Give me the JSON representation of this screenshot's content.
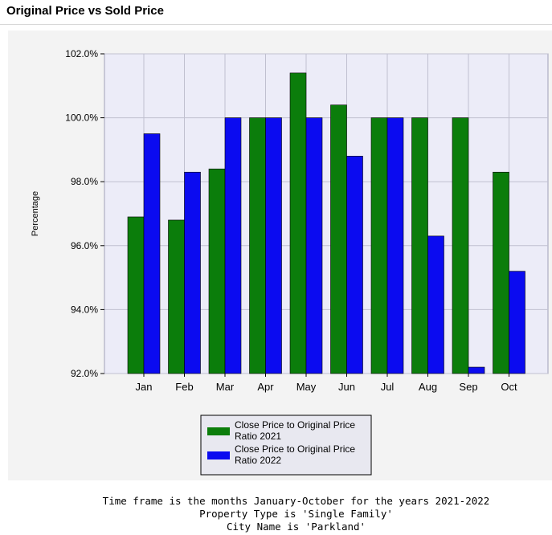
{
  "page": {
    "title": "Original Price vs Sold Price"
  },
  "colors": {
    "series_2021": "#0b7d0b",
    "series_2022": "#0b0bf0",
    "plot_bg": "#ececf8"
  },
  "chart_data": {
    "type": "bar",
    "title": "",
    "xlabel": "",
    "ylabel": "Percentage",
    "ylim": [
      92.0,
      102.0
    ],
    "yticks": [
      "102.0%",
      "100.0%",
      "98.0%",
      "96.0%",
      "94.0%",
      "92.0%"
    ],
    "categories": [
      "Jan",
      "Feb",
      "Mar",
      "Apr",
      "May",
      "Jun",
      "Jul",
      "Aug",
      "Sep",
      "Oct"
    ],
    "series": [
      {
        "name": "Close Price to Original Price Ratio 2021",
        "values": [
          96.9,
          96.8,
          98.4,
          100.0,
          101.4,
          100.4,
          100.0,
          100.0,
          100.0,
          98.3
        ]
      },
      {
        "name": "Close Price to Original Price Ratio 2022",
        "values": [
          99.5,
          98.3,
          100.0,
          100.0,
          100.0,
          98.8,
          100.0,
          96.3,
          92.2,
          95.2
        ]
      }
    ],
    "legend": {
      "placement": "bottom-center",
      "entries": [
        {
          "line1": "Close Price to Original Price",
          "line2": "Ratio 2021"
        },
        {
          "line1": "Close Price to Original Price",
          "line2": "Ratio 2022"
        }
      ]
    },
    "grid": true
  },
  "footnotes": [
    "Time frame is the months January-October for the years 2021-2022",
    "Property Type is 'Single Family'",
    "City Name is 'Parkland'"
  ]
}
